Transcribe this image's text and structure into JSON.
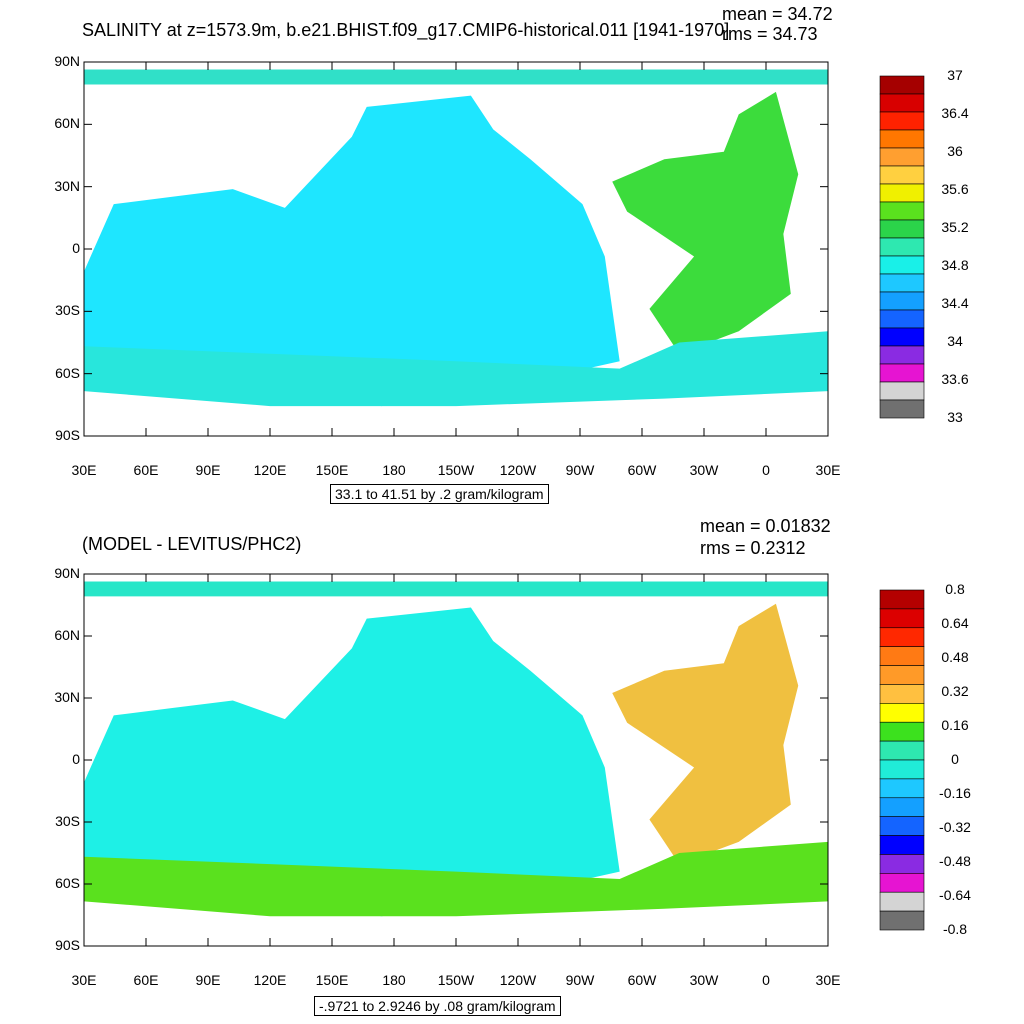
{
  "panels": [
    {
      "title": "SALINITY at z=1573.9m, b.e21.BHIST.f09_g17.CMIP6-historical.011 [1941-1970]",
      "mean_text": "mean = 34.72",
      "rms_text": "rms = 34.73",
      "range_text": "33.1 to 41.51 by .2 gram/kilogram",
      "colorbar_labels": [
        "37",
        "36.4",
        "36",
        "35.6",
        "35.2",
        "34.8",
        "34.4",
        "34",
        "33.6",
        "33"
      ],
      "colorbar_colors": [
        "#a50000",
        "#d80000",
        "#ff2200",
        "#ff7700",
        "#ff9f30",
        "#ffd040",
        "#f0f000",
        "#5ae11e",
        "#2bd44a",
        "#2ee8b0",
        "#19f0e8",
        "#1ec8ff",
        "#14a0ff",
        "#1464ff",
        "#0000ff",
        "#8a2be2",
        "#e614d2",
        "#d4d4d4",
        "#707070"
      ],
      "ocean_colors": {
        "main": "#1ee6ff",
        "atlantic": "#3cdc3c",
        "southern_band": "#28e6dc",
        "northern": "#30e0c8"
      }
    },
    {
      "title": "(MODEL - LEVITUS/PHC2)",
      "mean_text": "mean = 0.01832",
      "rms_text": "rms = 0.2312",
      "range_text": "-.9721 to 2.9246 by .08 gram/kilogram",
      "colorbar_labels": [
        "0.8",
        "0.64",
        "0.48",
        "0.32",
        "0.16",
        "0",
        "-0.16",
        "-0.32",
        "-0.48",
        "-0.64",
        "-0.8"
      ],
      "colorbar_colors": [
        "#b40000",
        "#dc0000",
        "#ff2800",
        "#ff7a14",
        "#ff9a28",
        "#ffc040",
        "#ffff00",
        "#3ce11e",
        "#2ee8b0",
        "#20ecd8",
        "#1ec8ff",
        "#14a0ff",
        "#1464ff",
        "#0000ff",
        "#8a2be2",
        "#e614d2",
        "#d4d4d4",
        "#707070"
      ],
      "ocean_colors": {
        "main": "#1ef0e6",
        "atlantic": "#f0c040",
        "southern_band": "#5ae11e",
        "northern": "#28e6c8"
      }
    }
  ],
  "axes": {
    "y_labels": [
      "90N",
      "60N",
      "30N",
      "0",
      "30S",
      "60S",
      "90S"
    ],
    "x_labels": [
      "30E",
      "60E",
      "90E",
      "120E",
      "150E",
      "180",
      "150W",
      "120W",
      "90W",
      "60W",
      "30W",
      "0",
      "30E"
    ]
  }
}
